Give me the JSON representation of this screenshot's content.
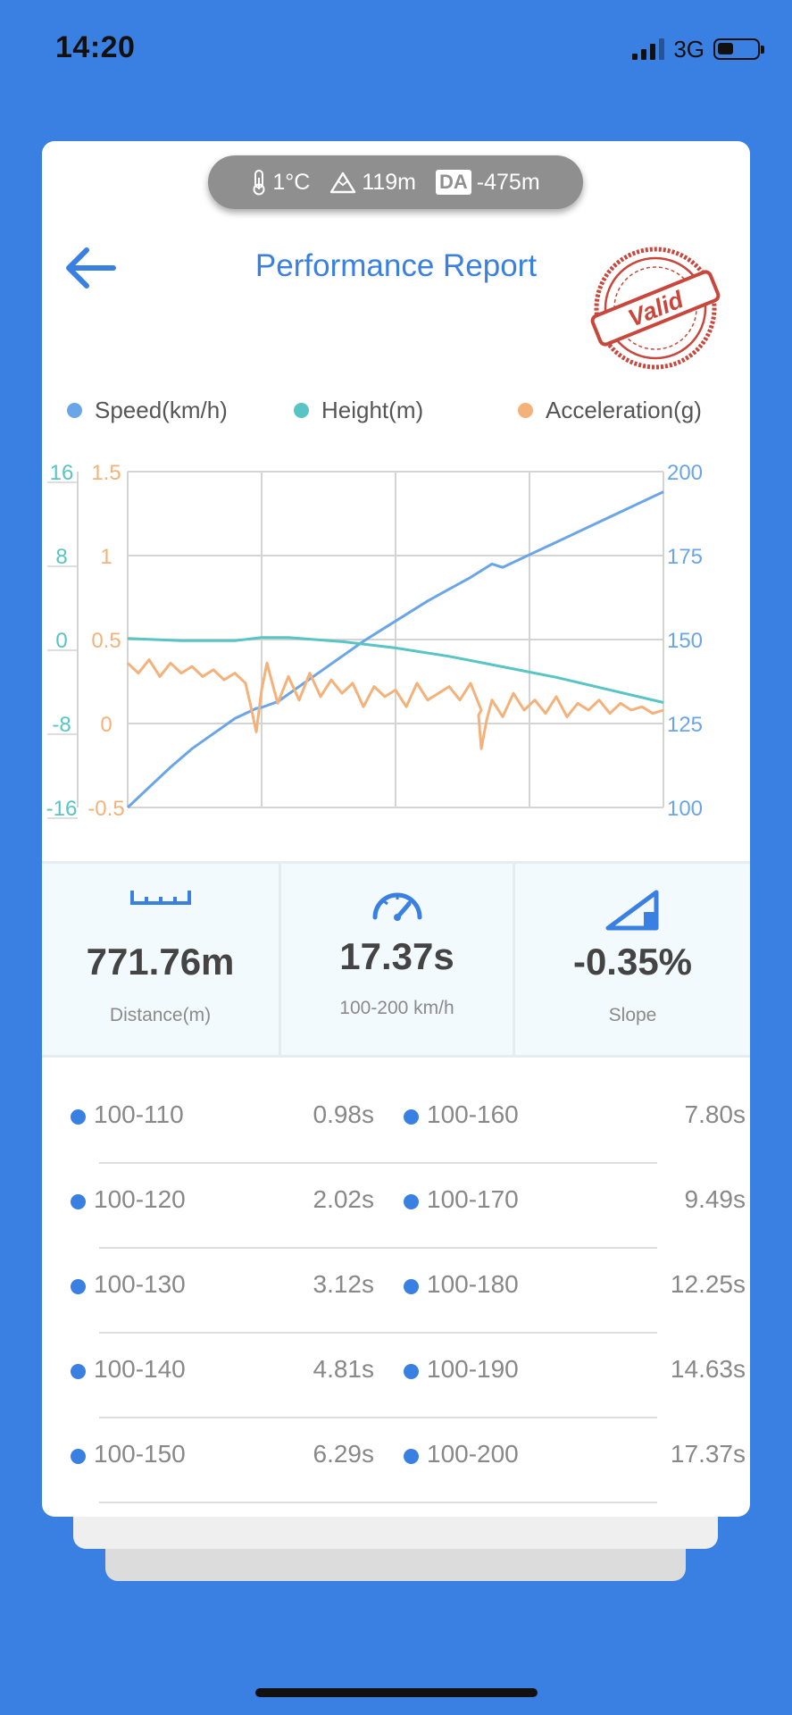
{
  "status_bar": {
    "time": "14:20",
    "network": "3G",
    "battery_level": 0.4
  },
  "environment": {
    "temperature": "1°C",
    "altitude": "119m",
    "density_altitude_label": "DA",
    "density_altitude": "-475m"
  },
  "header": {
    "title": "Performance Report",
    "stamp_text": "Valid"
  },
  "legend": [
    {
      "label": "Speed(km/h)",
      "color": "#6aa5e8"
    },
    {
      "label": "Height(m)",
      "color": "#58c4c4"
    },
    {
      "label": "Acceleration(g)",
      "color": "#f4b27a"
    }
  ],
  "chart_data": {
    "type": "line",
    "x_gridlines": 4,
    "axes": {
      "height_ticks": [
        "16",
        "8",
        "0",
        "-8",
        "-16"
      ],
      "accel_ticks": [
        "1.5",
        "1",
        "0.5",
        "0",
        "-0.5"
      ],
      "speed_ticks": [
        "200",
        "175",
        "150",
        "125",
        "100"
      ],
      "speed_range": [
        100,
        200
      ],
      "height_range": [
        -16,
        16
      ],
      "accel_range": [
        -0.5,
        1.5
      ]
    },
    "series": [
      {
        "name": "Speed(km/h)",
        "axis": "speed",
        "color": "#6aa5e8",
        "x": [
          0,
          0.04,
          0.08,
          0.12,
          0.16,
          0.2,
          0.24,
          0.25,
          0.28,
          0.32,
          0.36,
          0.4,
          0.44,
          0.48,
          0.52,
          0.56,
          0.6,
          0.64,
          0.68,
          0.7,
          0.72,
          0.76,
          0.8,
          0.84,
          0.88,
          0.92,
          0.96,
          1.0
        ],
        "values": [
          100,
          106,
          112,
          117.5,
          122,
          126.5,
          129.5,
          129.8,
          131.5,
          136,
          140.5,
          145,
          149.5,
          153.5,
          157.5,
          161.5,
          165,
          168.5,
          172.5,
          171.5,
          173,
          176,
          179,
          182,
          185,
          188,
          191,
          194
        ]
      },
      {
        "name": "Height(m)",
        "axis": "height",
        "color": "#58c4c4",
        "x": [
          0,
          0.1,
          0.2,
          0.25,
          0.3,
          0.4,
          0.5,
          0.6,
          0.7,
          0.8,
          0.9,
          1.0
        ],
        "values": [
          0.1,
          -0.1,
          -0.1,
          0.2,
          0.2,
          -0.2,
          -0.8,
          -1.6,
          -2.6,
          -3.6,
          -4.8,
          -6.0
        ]
      },
      {
        "name": "Acceleration(g)",
        "axis": "accel",
        "color": "#f4b27a",
        "x": [
          0,
          0.02,
          0.04,
          0.06,
          0.08,
          0.1,
          0.12,
          0.14,
          0.16,
          0.18,
          0.2,
          0.22,
          0.23,
          0.24,
          0.25,
          0.26,
          0.28,
          0.3,
          0.32,
          0.34,
          0.36,
          0.38,
          0.4,
          0.42,
          0.44,
          0.46,
          0.48,
          0.5,
          0.52,
          0.54,
          0.56,
          0.58,
          0.6,
          0.62,
          0.64,
          0.66,
          0.655,
          0.66,
          0.67,
          0.68,
          0.7,
          0.72,
          0.74,
          0.76,
          0.78,
          0.8,
          0.82,
          0.84,
          0.86,
          0.88,
          0.9,
          0.92,
          0.94,
          0.96,
          0.98,
          1.0
        ],
        "values": [
          0.36,
          0.3,
          0.38,
          0.28,
          0.36,
          0.3,
          0.34,
          0.28,
          0.32,
          0.26,
          0.3,
          0.24,
          0.1,
          -0.05,
          0.2,
          0.36,
          0.12,
          0.28,
          0.14,
          0.3,
          0.16,
          0.26,
          0.18,
          0.24,
          0.1,
          0.22,
          0.16,
          0.2,
          0.1,
          0.24,
          0.14,
          0.18,
          0.22,
          0.14,
          0.24,
          0.08,
          0.05,
          -0.15,
          0.02,
          0.14,
          0.04,
          0.18,
          0.08,
          0.14,
          0.06,
          0.16,
          0.04,
          0.12,
          0.08,
          0.14,
          0.06,
          0.12,
          0.08,
          0.1,
          0.06,
          0.08
        ]
      }
    ]
  },
  "stats": [
    {
      "icon": "ruler-icon",
      "value": "771.76m",
      "label": "Distance(m)"
    },
    {
      "icon": "speedometer-icon",
      "value": "17.37s",
      "label": "100-200 km/h"
    },
    {
      "icon": "slope-icon",
      "value": "-0.35%",
      "label": "Slope"
    }
  ],
  "splits": [
    {
      "left_range": "100-110",
      "left_time": "0.98s",
      "right_range": "100-160",
      "right_time": "7.80s"
    },
    {
      "left_range": "100-120",
      "left_time": "2.02s",
      "right_range": "100-170",
      "right_time": "9.49s"
    },
    {
      "left_range": "100-130",
      "left_time": "3.12s",
      "right_range": "100-180",
      "right_time": "12.25s"
    },
    {
      "left_range": "100-140",
      "left_time": "4.81s",
      "right_range": "100-190",
      "right_time": "14.63s"
    },
    {
      "left_range": "100-150",
      "left_time": "6.29s",
      "right_range": "100-200",
      "right_time": "17.37s"
    }
  ]
}
